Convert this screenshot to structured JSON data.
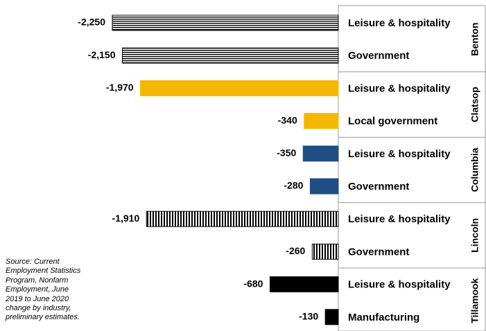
{
  "chart_data": {
    "type": "bar",
    "orientation": "horizontal",
    "xlim": [
      -2250,
      0
    ],
    "groups": [
      {
        "name": "Benton",
        "color": "#000000",
        "pattern": "horizontal",
        "categories": [
          "Leisure & hospitality",
          "Government"
        ],
        "values": [
          -2250,
          -2150
        ],
        "value_labels": [
          "-2,250",
          "-2,150"
        ]
      },
      {
        "name": "Clatsop",
        "color": "#f5b800",
        "pattern": "solid",
        "categories": [
          "Leisure & hospitality",
          "Local government"
        ],
        "values": [
          -1970,
          -340
        ],
        "value_labels": [
          "-1,970",
          "-340"
        ]
      },
      {
        "name": "Columbia",
        "color": "#1f4e85",
        "pattern": "solid",
        "categories": [
          "Leisure & hospitality",
          "Government"
        ],
        "values": [
          -350,
          -280
        ],
        "value_labels": [
          "-350",
          "-280"
        ]
      },
      {
        "name": "Lincoln",
        "color": "#000000",
        "pattern": "vertical",
        "categories": [
          "Leisure & hospitality",
          "Government"
        ],
        "values": [
          -1910,
          -260
        ],
        "value_labels": [
          "-1,910",
          "-260"
        ]
      },
      {
        "name": "Tillamook",
        "color": "#000000",
        "pattern": "solid",
        "categories": [
          "Leisure & hospitality",
          "Manufacturing"
        ],
        "values": [
          -680,
          -130
        ],
        "value_labels": [
          "-680",
          "-130"
        ]
      }
    ],
    "source_lines": [
      "Source: Current",
      "Employment Statistics",
      "Program, Nonfarm",
      "Employment, June",
      "2019 to June 2020",
      "change by industry,",
      "preliminary estimates."
    ]
  }
}
